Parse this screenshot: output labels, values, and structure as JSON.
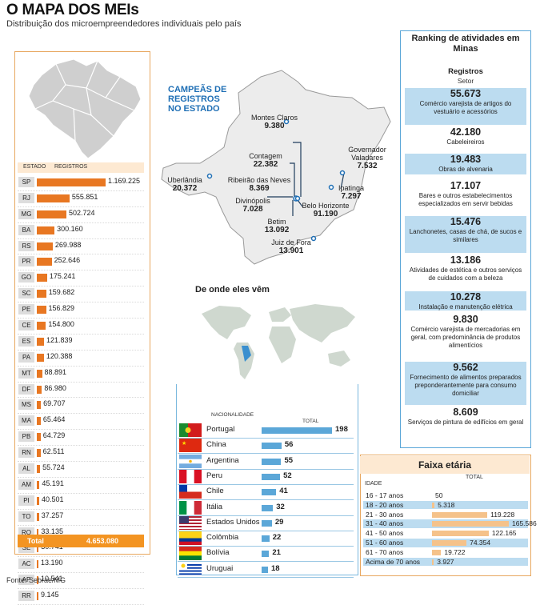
{
  "header": {
    "title": "O MAPA DOS MEIs",
    "subtitle": "Distribuição dos microempreendedores individuais pelo país"
  },
  "source": "Fonte: Sebrae/MG",
  "states": {
    "col_state": "ESTADO",
    "col_records": "REGISTROS",
    "max": 1169225,
    "rows": [
      {
        "code": "SP",
        "value": 1169225,
        "label": "1.169.225"
      },
      {
        "code": "RJ",
        "value": 555851,
        "label": "555.851"
      },
      {
        "code": "MG",
        "value": 502724,
        "label": "502.724"
      },
      {
        "code": "BA",
        "value": 300160,
        "label": "300.160"
      },
      {
        "code": "RS",
        "value": 269988,
        "label": "269.988"
      },
      {
        "code": "PR",
        "value": 252646,
        "label": "252.646"
      },
      {
        "code": "GO",
        "value": 175241,
        "label": "175.241"
      },
      {
        "code": "SC",
        "value": 159682,
        "label": "159.682"
      },
      {
        "code": "PE",
        "value": 156829,
        "label": "156.829"
      },
      {
        "code": "CE",
        "value": 154800,
        "label": "154.800"
      },
      {
        "code": "ES",
        "value": 121839,
        "label": "121.839"
      },
      {
        "code": "PA",
        "value": 120388,
        "label": "120.388"
      },
      {
        "code": "MT",
        "value": 88891,
        "label": "88.891"
      },
      {
        "code": "DF",
        "value": 86980,
        "label": "86.980"
      },
      {
        "code": "MS",
        "value": 69707,
        "label": "69.707"
      },
      {
        "code": "MA",
        "value": 65464,
        "label": "65.464"
      },
      {
        "code": "PB",
        "value": 64729,
        "label": "64.729"
      },
      {
        "code": "RN",
        "value": 62511,
        "label": "62.511"
      },
      {
        "code": "AL",
        "value": 55724,
        "label": "55.724"
      },
      {
        "code": "AM",
        "value": 45191,
        "label": "45.191"
      },
      {
        "code": "PI",
        "value": 40501,
        "label": "40.501"
      },
      {
        "code": "TO",
        "value": 37257,
        "label": "37.257"
      },
      {
        "code": "RO",
        "value": 33135,
        "label": "33.135"
      },
      {
        "code": "SE",
        "value": 30741,
        "label": "30.741"
      },
      {
        "code": "AC",
        "value": 13190,
        "label": "13.190"
      },
      {
        "code": "AP",
        "value": 10541,
        "label": "10.541"
      },
      {
        "code": "RR",
        "value": 9145,
        "label": "9.145"
      }
    ],
    "total_label": "Total",
    "total_value": "4.653.080"
  },
  "mg": {
    "title_lines": [
      "CAMPEÃS DE",
      "REGISTROS",
      "NO ESTADO"
    ],
    "cities": [
      {
        "name": "Montes Claros",
        "value": "9.380"
      },
      {
        "name": "Contagem",
        "value": "22.382"
      },
      {
        "name": "Ribeirão das Neves",
        "value": "8.369"
      },
      {
        "name": "Uberlândia",
        "value": "20.372"
      },
      {
        "name": "Divinópolis",
        "value": "7.028"
      },
      {
        "name": "Betim",
        "value": "13.092"
      },
      {
        "name": "Belo Horizonte",
        "value": "91.190"
      },
      {
        "name": "Juiz de Fora",
        "value": "13.901"
      },
      {
        "name": "Governador Valadares",
        "value": "7.532"
      },
      {
        "name": "Ipatinga",
        "value": "7.297"
      }
    ]
  },
  "world": {
    "title": "De onde eles vêm"
  },
  "nationality": {
    "col_name": "NACIONALIDADE",
    "col_total": "TOTAL",
    "max": 198,
    "rows": [
      {
        "name": "Portugal",
        "value": 198,
        "flag": "portugal-flag"
      },
      {
        "name": "China",
        "value": 56,
        "flag": "china-flag"
      },
      {
        "name": "Argentina",
        "value": 55,
        "flag": "argentina-flag"
      },
      {
        "name": "Peru",
        "value": 52,
        "flag": "peru-flag"
      },
      {
        "name": "Chile",
        "value": 41,
        "flag": "chile-flag"
      },
      {
        "name": "Itália",
        "value": 32,
        "flag": "italy-flag"
      },
      {
        "name": "Estados Unidos",
        "value": 29,
        "flag": "usa-flag"
      },
      {
        "name": "Colômbia",
        "value": 22,
        "flag": "colombia-flag"
      },
      {
        "name": "Bolívia",
        "value": 21,
        "flag": "bolivia-flag"
      },
      {
        "name": "Uruguai",
        "value": 18,
        "flag": "uruguay-flag"
      }
    ]
  },
  "ranking": {
    "title": "Ranking de atividades em Minas",
    "col_records": "Registros",
    "col_sector": "Setor",
    "items": [
      {
        "value": "55.673",
        "desc": "Comércio varejista de artigos do vestuário e acessórios"
      },
      {
        "value": "42.180",
        "desc": "Cabeleireiros"
      },
      {
        "value": "19.483",
        "desc": "Obras de alvenaria"
      },
      {
        "value": "17.107",
        "desc": "Bares e outros estabelecimentos especializados em servir bebidas"
      },
      {
        "value": "15.476",
        "desc": "Lanchonetes, casas de chá, de sucos e similares"
      },
      {
        "value": "13.186",
        "desc": "Atividades de estética e outros serviços de cuidados com a beleza"
      },
      {
        "value": "10.278",
        "desc": "Instalação e manutenção elétrica"
      },
      {
        "value": "9.830",
        "desc": "Comércio varejista de mercadorias em geral, com predominância de produtos alimentícios"
      },
      {
        "value": "9.562",
        "desc": "Fornecimento de alimentos preparados preponderantemente para consumo domiciliar"
      },
      {
        "value": "8.609",
        "desc": "Serviços de pintura de edifícios em geral"
      }
    ]
  },
  "age": {
    "title": "Faixa etária",
    "col_age": "IDADE",
    "col_total": "TOTAL",
    "max": 165586,
    "rows": [
      {
        "range": "16 - 17 anos",
        "value": 50,
        "label": "50"
      },
      {
        "range": "18 - 20 anos",
        "value": 5318,
        "label": "5.318"
      },
      {
        "range": "21 - 30 anos",
        "value": 119228,
        "label": "119.228"
      },
      {
        "range": "31 - 40 anos",
        "value": 165586,
        "label": "165.586"
      },
      {
        "range": "41 - 50 anos",
        "value": 122165,
        "label": "122.165"
      },
      {
        "range": "51 - 60 anos",
        "value": 74354,
        "label": "74.354"
      },
      {
        "range": "61 - 70 anos",
        "value": 19722,
        "label": "19.722"
      },
      {
        "range": "Acima de 70 anos",
        "value": 3927,
        "label": "3.927"
      }
    ]
  },
  "colors": {
    "orange": "#e87722",
    "blue": "#5ba7d8",
    "light_blue": "#bcdcf0",
    "light_orange": "#fde9d2"
  }
}
